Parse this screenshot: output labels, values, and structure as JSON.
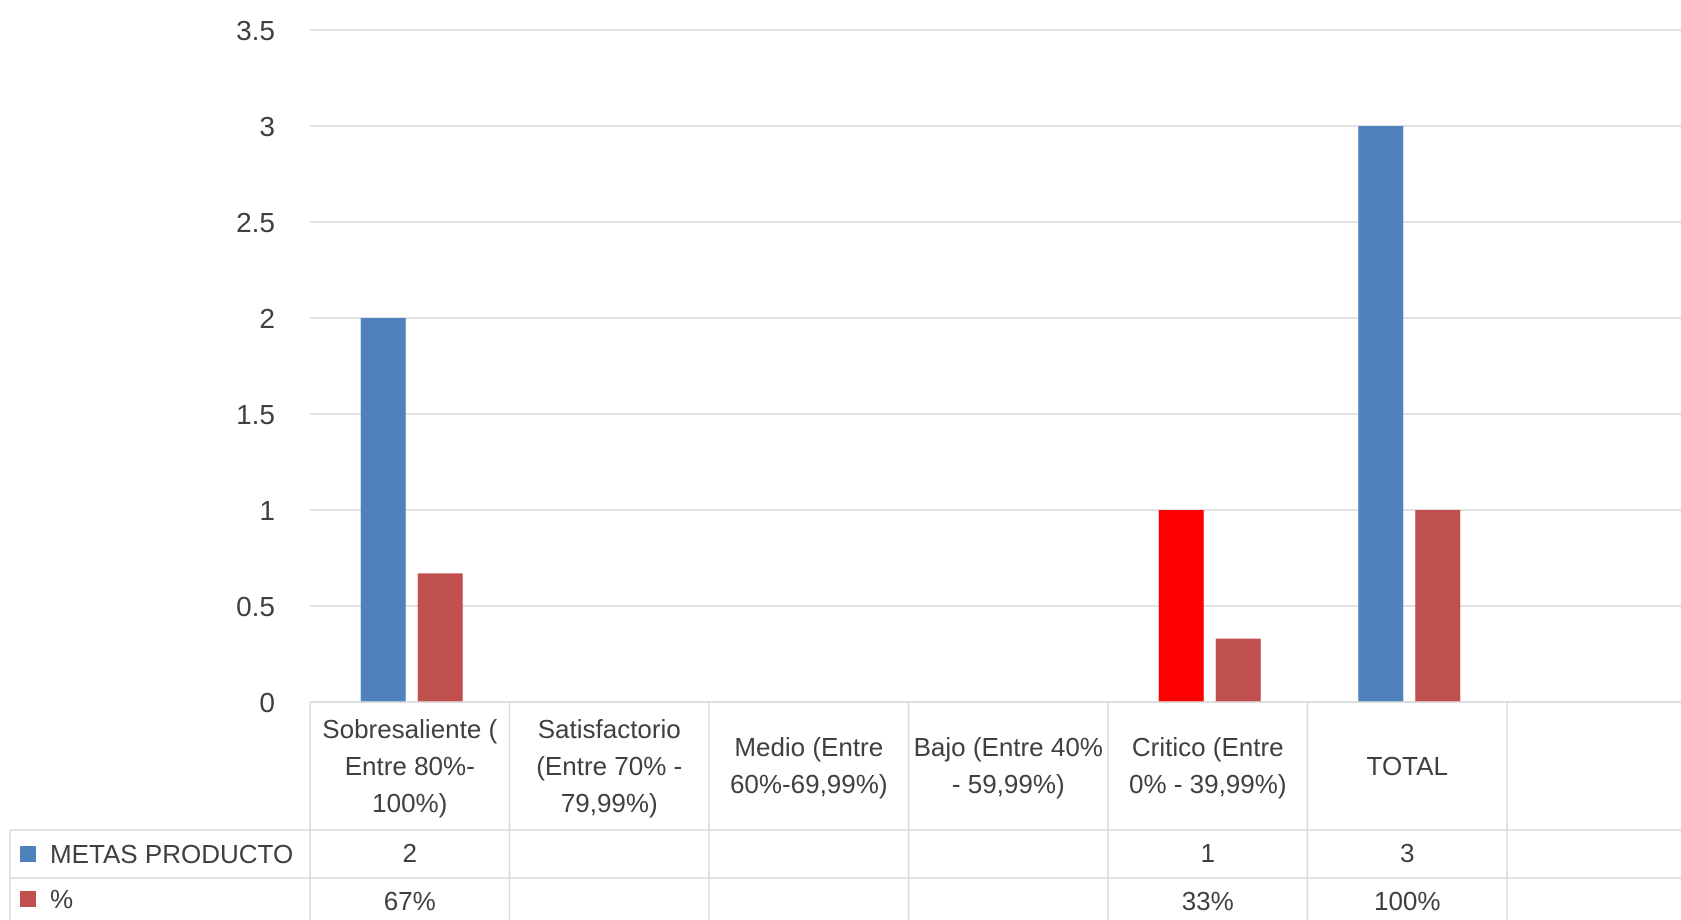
{
  "chart_data": {
    "type": "bar",
    "categories": [
      "Sobresaliente ( Entre 80%- 100%)",
      "Satisfactorio (Entre 70% - 79,99%)",
      "Medio (Entre 60%-69,99%)",
      "Bajo (Entre 40% - 59,99%)",
      "Critico (Entre 0% - 39,99%)",
      "TOTAL"
    ],
    "series": [
      {
        "name": "METAS PRODUCTO",
        "values": [
          2,
          null,
          null,
          null,
          1,
          3
        ],
        "labels": [
          "2",
          "",
          "",
          "",
          "1",
          "3"
        ],
        "color": "#4F81BD",
        "point_colors": [
          null,
          null,
          null,
          null,
          "#FF0000",
          null
        ]
      },
      {
        "name": "%",
        "values": [
          0.67,
          null,
          null,
          null,
          0.33,
          1.0
        ],
        "labels": [
          "67%",
          "",
          "",
          "",
          "33%",
          "100%"
        ],
        "color": "#C0504D"
      }
    ],
    "ylim": [
      0,
      3.5
    ],
    "yticks": [
      "0",
      "0.5",
      "1",
      "1.5",
      "2",
      "2.5",
      "3",
      "3.5"
    ],
    "grid": true,
    "legend": "data-table"
  }
}
